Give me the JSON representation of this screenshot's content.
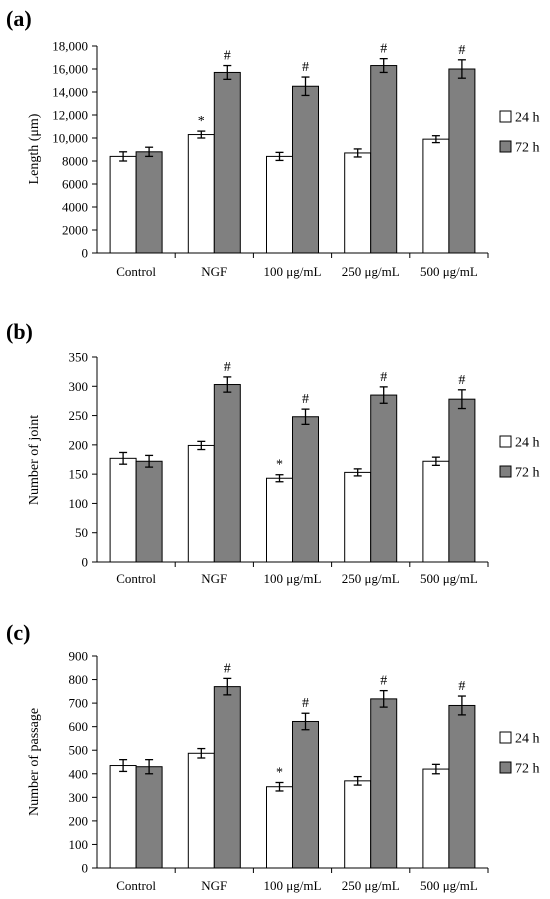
{
  "chart_data": [
    {
      "type": "bar",
      "panel_label": "(a)",
      "categories": [
        "Control",
        "NGF",
        "100 μg/mL",
        "250 μg/mL",
        "500 μg/mL"
      ],
      "ylabel": "Length (μm)",
      "ylim": [
        0,
        18000
      ],
      "yticks": [
        "0",
        "2000",
        "4000",
        "6000",
        "8000",
        "10,000",
        "12,000",
        "14,000",
        "16,000",
        "18,000"
      ],
      "series": [
        {
          "name": "24 h",
          "color": "#ffffff",
          "values": [
            8400,
            10300,
            8400,
            8700,
            9900
          ],
          "errors": [
            400,
            300,
            350,
            350,
            300
          ],
          "marks": [
            "",
            "*",
            "",
            "",
            ""
          ]
        },
        {
          "name": "72 h",
          "color": "#808080",
          "values": [
            8800,
            15700,
            14500,
            16300,
            16000
          ],
          "errors": [
            400,
            600,
            800,
            600,
            800
          ],
          "marks": [
            "",
            "#",
            "#",
            "#",
            "#"
          ]
        }
      ]
    },
    {
      "type": "bar",
      "panel_label": "(b)",
      "categories": [
        "Control",
        "NGF",
        "100 μg/mL",
        "250 μg/mL",
        "500 μg/mL"
      ],
      "ylabel": "Number of joint",
      "ylim": [
        0,
        350
      ],
      "yticks": [
        "0",
        "50",
        "100",
        "150",
        "200",
        "250",
        "300",
        "350"
      ],
      "series": [
        {
          "name": "24 h",
          "color": "#ffffff",
          "values": [
            177,
            199,
            143,
            153,
            172
          ],
          "errors": [
            10,
            7,
            6,
            6,
            7
          ],
          "marks": [
            "",
            "",
            "*",
            "",
            ""
          ]
        },
        {
          "name": "72 h",
          "color": "#808080",
          "values": [
            172,
            303,
            248,
            285,
            278
          ],
          "errors": [
            10,
            13,
            13,
            14,
            16
          ],
          "marks": [
            "",
            "#",
            "#",
            "#",
            "#"
          ]
        }
      ]
    },
    {
      "type": "bar",
      "panel_label": "(c)",
      "categories": [
        "Control",
        "NGF",
        "100 μg/mL",
        "250 μg/mL",
        "500 μg/mL"
      ],
      "ylabel": "Number of passage",
      "ylim": [
        0,
        900
      ],
      "yticks": [
        "0",
        "100",
        "200",
        "300",
        "400",
        "500",
        "600",
        "700",
        "800",
        "900"
      ],
      "series": [
        {
          "name": "24 h",
          "color": "#ffffff",
          "values": [
            435,
            487,
            345,
            370,
            420
          ],
          "errors": [
            25,
            20,
            18,
            18,
            20
          ],
          "marks": [
            "",
            "",
            "*",
            "",
            ""
          ]
        },
        {
          "name": "72 h",
          "color": "#808080",
          "values": [
            430,
            770,
            622,
            718,
            690
          ],
          "errors": [
            30,
            35,
            35,
            35,
            40
          ],
          "marks": [
            "",
            "#",
            "#",
            "#",
            "#"
          ]
        }
      ]
    }
  ]
}
